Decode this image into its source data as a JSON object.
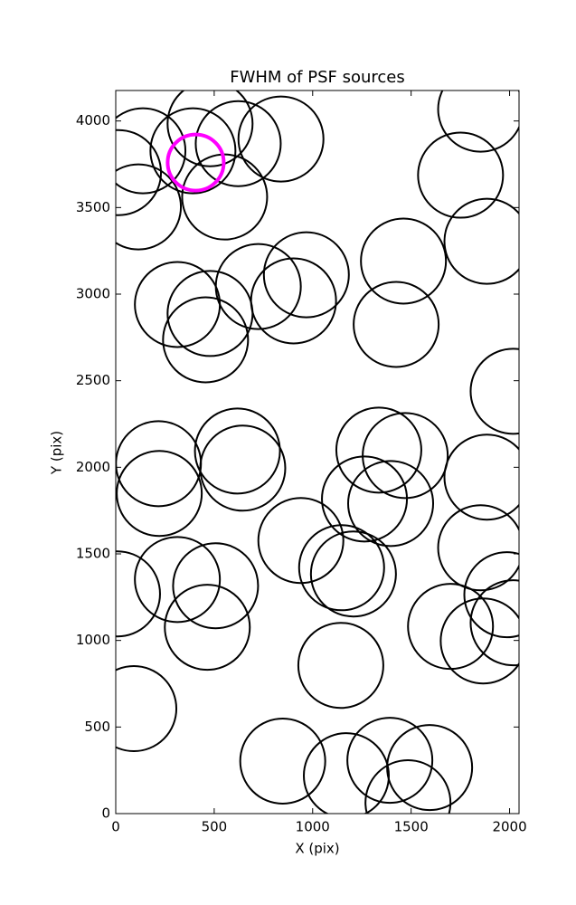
{
  "chart_data": {
    "type": "scatter",
    "title": "FWHM of PSF sources",
    "x_label": "X (pix)",
    "y_label": "Y (pix)",
    "xlim": [
      0,
      2048
    ],
    "ylim": [
      0,
      4176
    ],
    "xticks": [
      0,
      500,
      1000,
      1500,
      2000
    ],
    "yticks": [
      0,
      500,
      1000,
      1500,
      2000,
      2500,
      3000,
      3500,
      4000
    ],
    "grid": false,
    "series": [
      {
        "color": "#000000",
        "x": [
          138,
          14,
          115,
          479,
          622,
          839,
          553,
          392,
          1853,
          1751,
          1885,
          1461,
          1424,
          2018,
          724,
          968,
          903,
          313,
          479,
          456,
          217,
          221,
          618,
          645,
          1336,
          1470,
          1263,
          1396,
          1885,
          1853,
          940,
          1147,
          1207,
          313,
          507,
          465,
          9,
          1700,
          1866,
          1986,
          2018,
          1143,
          92,
          848,
          1171,
          1392,
          1594,
          1484
        ],
        "values": [
          3828,
          3702,
          3504,
          3984,
          3869,
          3896,
          3561,
          3828,
          4068,
          3687,
          3305,
          3191,
          2825,
          2439,
          3044,
          3112,
          2961,
          2940,
          2888,
          2736,
          2021,
          1849,
          2094,
          1995,
          2099,
          2068,
          1817,
          1791,
          1943,
          1535,
          1577,
          1420,
          1384,
          1352,
          1316,
          1076,
          1269,
          1081,
          997,
          1264,
          1102,
          856,
          606,
          303,
          219,
          308,
          266,
          63
        ]
      },
      {
        "color": "#ff00ff",
        "x": [
          406
        ],
        "values": [
          3760
        ]
      }
    ]
  }
}
